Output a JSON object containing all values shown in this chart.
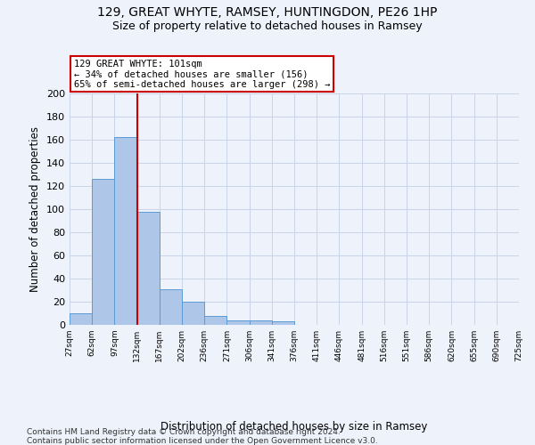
{
  "title1": "129, GREAT WHYTE, RAMSEY, HUNTINGDON, PE26 1HP",
  "title2": "Size of property relative to detached houses in Ramsey",
  "xlabel": "Distribution of detached houses by size in Ramsey",
  "ylabel": "Number of detached properties",
  "bar_values": [
    10,
    126,
    162,
    98,
    31,
    20,
    8,
    4,
    4,
    3,
    0,
    0,
    0,
    0,
    0,
    0,
    0,
    0,
    0,
    0
  ],
  "bin_labels": [
    "27sqm",
    "62sqm",
    "97sqm",
    "132sqm",
    "167sqm",
    "202sqm",
    "236sqm",
    "271sqm",
    "306sqm",
    "341sqm",
    "376sqm",
    "411sqm",
    "446sqm",
    "481sqm",
    "516sqm",
    "551sqm",
    "586sqm",
    "620sqm",
    "655sqm",
    "690sqm",
    "725sqm"
  ],
  "bar_color": "#aec6e8",
  "bar_edge_color": "#5b9bd5",
  "grid_color": "#c8d4e8",
  "red_line_index": 2,
  "annotation_line1": "129 GREAT WHYTE: 101sqm",
  "annotation_line2": "← 34% of detached houses are smaller (156)",
  "annotation_line3": "65% of semi-detached houses are larger (298) →",
  "annotation_box_color": "#ffffff",
  "annotation_box_edge": "#cc0000",
  "red_line_color": "#cc0000",
  "footer1": "Contains HM Land Registry data © Crown copyright and database right 2024.",
  "footer2": "Contains public sector information licensed under the Open Government Licence v3.0.",
  "ylim": [
    0,
    200
  ],
  "yticks": [
    0,
    20,
    40,
    60,
    80,
    100,
    120,
    140,
    160,
    180,
    200
  ],
  "background_color": "#eef2fa"
}
